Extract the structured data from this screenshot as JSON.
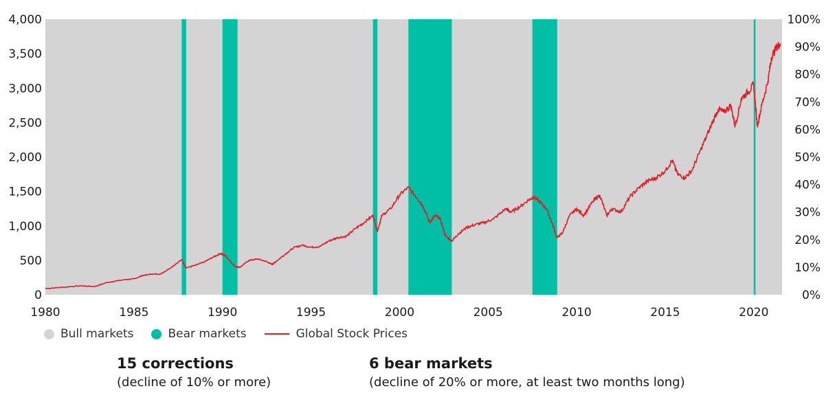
{
  "chart_data": {
    "type": "line",
    "x_ticks": [
      "1980",
      "1985",
      "1990",
      "1995",
      "2000",
      "2005",
      "2010",
      "2015",
      "2020"
    ],
    "y_ticks_left": [
      "0",
      "500",
      "1,000",
      "1,500",
      "2,000",
      "2,500",
      "3,000",
      "3,500",
      "4,000"
    ],
    "y_ticks_right": [
      "0%",
      "10%",
      "20%",
      "30%",
      "40%",
      "50%",
      "60%",
      "70%",
      "80%",
      "90%",
      "100%"
    ],
    "xlim": [
      1980.0,
      2021.6
    ],
    "ylim": [
      0,
      4000
    ],
    "background_regions": [
      {
        "type": "bull",
        "start": 1980.0,
        "end": 2021.6
      }
    ],
    "bear_markets": [
      {
        "start": 1987.7,
        "end": 1987.95
      },
      {
        "start": 1990.0,
        "end": 1990.85
      },
      {
        "start": 1998.5,
        "end": 1998.75
      },
      {
        "start": 2000.5,
        "end": 2002.95
      },
      {
        "start": 2007.5,
        "end": 2008.9
      },
      {
        "start": 2020.0,
        "end": 2020.1
      }
    ],
    "series": [
      {
        "name": "Global Stock Prices",
        "color": "#e31b23",
        "points": [
          [
            1980.0,
            90
          ],
          [
            1981.0,
            110
          ],
          [
            1982.0,
            130
          ],
          [
            1982.8,
            120
          ],
          [
            1983.5,
            180
          ],
          [
            1984.5,
            220
          ],
          [
            1985.0,
            230
          ],
          [
            1985.5,
            280
          ],
          [
            1986.0,
            300
          ],
          [
            1986.5,
            300
          ],
          [
            1987.0,
            380
          ],
          [
            1987.7,
            510
          ],
          [
            1987.95,
            390
          ],
          [
            1988.5,
            430
          ],
          [
            1989.0,
            480
          ],
          [
            1989.5,
            550
          ],
          [
            1989.9,
            600
          ],
          [
            1990.2,
            560
          ],
          [
            1990.7,
            410
          ],
          [
            1991.0,
            400
          ],
          [
            1991.5,
            500
          ],
          [
            1992.0,
            520
          ],
          [
            1992.5,
            480
          ],
          [
            1992.8,
            440
          ],
          [
            1993.0,
            480
          ],
          [
            1993.5,
            580
          ],
          [
            1994.0,
            680
          ],
          [
            1994.5,
            720
          ],
          [
            1995.0,
            690
          ],
          [
            1995.5,
            700
          ],
          [
            1996.0,
            780
          ],
          [
            1996.5,
            830
          ],
          [
            1997.0,
            850
          ],
          [
            1997.5,
            960
          ],
          [
            1998.0,
            1050
          ],
          [
            1998.5,
            1150
          ],
          [
            1998.75,
            920
          ],
          [
            1999.0,
            1150
          ],
          [
            1999.5,
            1250
          ],
          [
            2000.0,
            1450
          ],
          [
            2000.5,
            1560
          ],
          [
            2001.0,
            1400
          ],
          [
            2001.3,
            1300
          ],
          [
            2001.7,
            1050
          ],
          [
            2002.0,
            1150
          ],
          [
            2002.3,
            1100
          ],
          [
            2002.6,
            850
          ],
          [
            2002.95,
            780
          ],
          [
            2003.3,
            880
          ],
          [
            2003.8,
            980
          ],
          [
            2004.3,
            1020
          ],
          [
            2004.8,
            1050
          ],
          [
            2005.3,
            1100
          ],
          [
            2006.0,
            1250
          ],
          [
            2006.3,
            1200
          ],
          [
            2006.8,
            1280
          ],
          [
            2007.3,
            1380
          ],
          [
            2007.6,
            1420
          ],
          [
            2007.9,
            1350
          ],
          [
            2008.3,
            1250
          ],
          [
            2008.6,
            1050
          ],
          [
            2008.9,
            830
          ],
          [
            2009.2,
            900
          ],
          [
            2009.6,
            1150
          ],
          [
            2010.0,
            1250
          ],
          [
            2010.4,
            1150
          ],
          [
            2010.9,
            1350
          ],
          [
            2011.3,
            1450
          ],
          [
            2011.7,
            1150
          ],
          [
            2012.0,
            1250
          ],
          [
            2012.5,
            1200
          ],
          [
            2013.0,
            1420
          ],
          [
            2013.5,
            1550
          ],
          [
            2014.0,
            1650
          ],
          [
            2014.5,
            1700
          ],
          [
            2015.0,
            1800
          ],
          [
            2015.4,
            1950
          ],
          [
            2015.7,
            1750
          ],
          [
            2016.1,
            1700
          ],
          [
            2016.5,
            1800
          ],
          [
            2017.0,
            2100
          ],
          [
            2017.5,
            2400
          ],
          [
            2018.0,
            2700
          ],
          [
            2018.3,
            2650
          ],
          [
            2018.7,
            2750
          ],
          [
            2018.95,
            2450
          ],
          [
            2019.3,
            2850
          ],
          [
            2019.7,
            2950
          ],
          [
            2020.0,
            3050
          ],
          [
            2020.2,
            2450
          ],
          [
            2020.45,
            2750
          ],
          [
            2020.8,
            3100
          ],
          [
            2021.0,
            3450
          ],
          [
            2021.3,
            3600
          ],
          [
            2021.5,
            3650
          ]
        ]
      }
    ],
    "legend": [
      {
        "label": "Bull markets",
        "color": "#d4d4d4",
        "kind": "dot"
      },
      {
        "label": "Bear markets",
        "color": "#00bfa5",
        "kind": "dot"
      },
      {
        "label": "Global Stock Prices",
        "color": "#e31b23",
        "kind": "line"
      }
    ],
    "colors": {
      "bull": "#d4d4d4",
      "bear": "#00bfa5",
      "line": "#e31b23"
    }
  },
  "stats": {
    "corrections_title": "15 corrections",
    "corrections_sub": "(decline of 10% or more)",
    "bear_title": "6 bear markets",
    "bear_sub": "(decline of 20% or more, at least two months long)"
  }
}
